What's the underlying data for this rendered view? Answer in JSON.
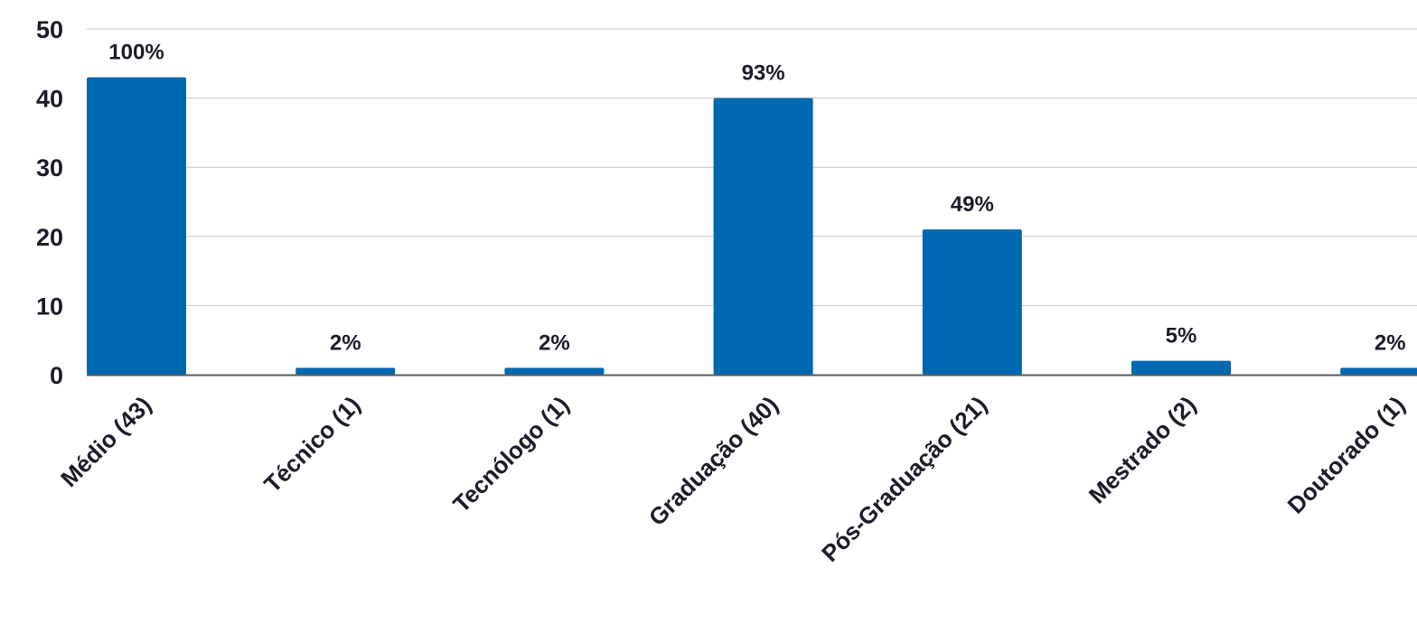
{
  "chart_data": {
    "type": "bar",
    "categories": [
      "Médio (43)",
      "Técnico (1)",
      "Tecnólogo (1)",
      "Graduação (40)",
      "Pós-Graduação (21)",
      "Mestrado (2)",
      "Doutorado (1)"
    ],
    "values": [
      43,
      1,
      1,
      40,
      21,
      2,
      1
    ],
    "data_labels": [
      "100%",
      "2%",
      "2%",
      "93%",
      "49%",
      "5%",
      "2%"
    ],
    "y_ticks": [
      "0",
      "10",
      "20",
      "30",
      "40",
      "50"
    ],
    "ylim": [
      0,
      50
    ],
    "grid": true,
    "legend": "none",
    "title": "",
    "xlabel": "",
    "ylabel": "",
    "colors": {
      "bar": "#0067b1",
      "grid": "#c8c8c8",
      "axis": "#5a5a5a",
      "text": "#1b1b2a"
    }
  }
}
